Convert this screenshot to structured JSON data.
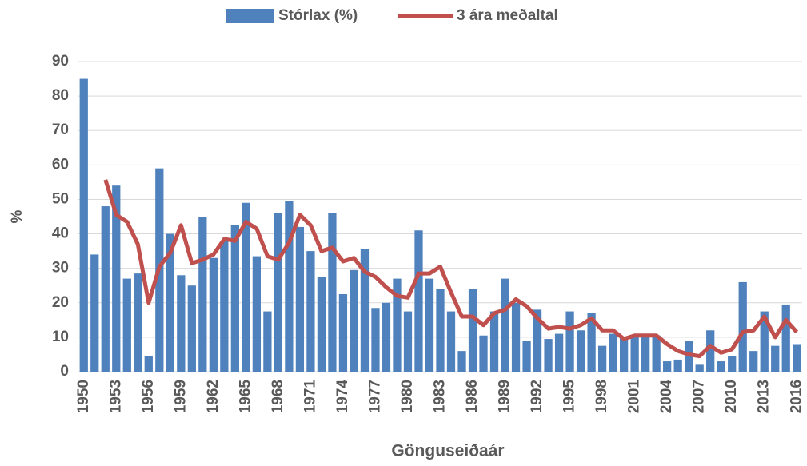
{
  "chart_data": {
    "type": "bar",
    "x_label": "Gönguseiðaár",
    "y_label": "%",
    "categories": [
      "1950",
      null,
      null,
      "1953",
      null,
      null,
      "1956",
      null,
      null,
      "1959",
      null,
      null,
      "1962",
      null,
      null,
      "1965",
      null,
      null,
      "1968",
      null,
      null,
      "1971",
      null,
      null,
      "1974",
      null,
      null,
      "1977",
      null,
      null,
      "1980",
      null,
      null,
      "1983",
      null,
      null,
      "1986",
      null,
      null,
      "1989",
      null,
      null,
      "1992",
      null,
      null,
      "1995",
      null,
      null,
      "1998",
      null,
      null,
      "2001",
      null,
      null,
      "2004",
      null,
      null,
      "2007",
      null,
      null,
      "2010",
      null,
      null,
      "2013",
      null,
      null,
      "2016"
    ],
    "series": [
      {
        "name": "Stórlax (%)",
        "type": "bar",
        "color": "#4f81bd",
        "values": [
          85,
          34,
          48,
          54,
          27,
          28.5,
          4.5,
          59,
          40,
          28,
          25,
          45,
          33,
          38,
          42.5,
          49,
          33.5,
          17.5,
          46,
          49.5,
          42,
          35,
          27.5,
          46,
          22.5,
          29.5,
          35.5,
          18.5,
          20,
          27,
          17.5,
          41,
          27,
          24,
          17.5,
          6,
          24,
          10.5,
          17.5,
          27,
          20,
          9,
          18,
          9.5,
          11,
          17.5,
          12,
          17,
          7.5,
          11,
          10,
          10.5,
          10.5,
          10.5,
          3,
          3.5,
          9,
          2,
          12,
          3,
          4.5,
          26,
          6,
          17.5,
          7.5,
          19.5,
          8
        ]
      },
      {
        "name": "3 ára meðaltal",
        "type": "line",
        "color": "#c0504d",
        "values": [
          null,
          null,
          55.7,
          45.5,
          43.5,
          37,
          20,
          30.5,
          34.5,
          42.5,
          31.5,
          32.5,
          34,
          38.5,
          38,
          43.5,
          41.5,
          33.5,
          32.5,
          37.5,
          45.5,
          42.5,
          35,
          36,
          32,
          33,
          29,
          27.5,
          24.5,
          22,
          21.5,
          28.5,
          28.5,
          30.5,
          23,
          16,
          16,
          13.5,
          17,
          18,
          21,
          19,
          15.5,
          12.5,
          13,
          12.5,
          13.5,
          15.5,
          12,
          12,
          9.5,
          10.5,
          10.5,
          10.5,
          8,
          6,
          5,
          4.5,
          7.5,
          5.5,
          6.5,
          11.5,
          12,
          16,
          10,
          15,
          11.5
        ]
      }
    ],
    "ylim": [
      0,
      90
    ],
    "yticks": [
      0,
      10,
      20,
      30,
      40,
      50,
      60,
      70,
      80,
      90
    ],
    "grid": true,
    "legend": "top"
  }
}
